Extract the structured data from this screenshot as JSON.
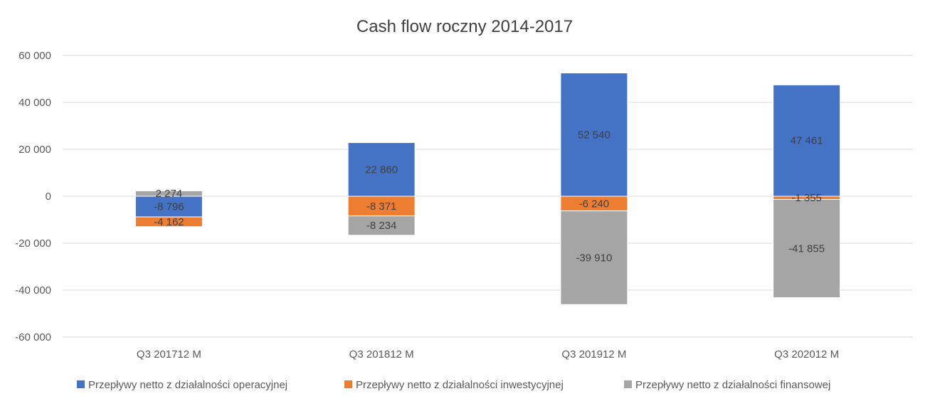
{
  "chart_data": {
    "type": "bar",
    "stacked": true,
    "title": "Cash flow roczny 2014-2017",
    "xlabel": "",
    "ylabel": "",
    "categories": [
      "Q3 201712 M",
      "Q3 201812 M",
      "Q3 201912 M",
      "Q3 202012 M"
    ],
    "ylim": [
      -60000,
      60000
    ],
    "ytick_values": [
      60000,
      40000,
      20000,
      0,
      -20000,
      -40000,
      -60000
    ],
    "ytick_labels": [
      "60 000",
      "40 000",
      "20 000",
      "0",
      "-20 000",
      "-40 000",
      "-60 000"
    ],
    "grid": true,
    "legend_position": "bottom",
    "series": [
      {
        "name": "Przepływy netto z działalności operacyjnej",
        "color": "#4472c4",
        "values": [
          -8796,
          22860,
          52540,
          47461
        ],
        "labels": [
          "-8 796",
          "22 860",
          "52 540",
          "47 461"
        ]
      },
      {
        "name": "Przepływy netto z działalności inwestycyjnej",
        "color": "#ed7d31",
        "values": [
          -4162,
          -8371,
          -6240,
          -1355
        ],
        "labels": [
          "-4 162",
          "-8 371",
          "-6 240",
          "-1 355"
        ]
      },
      {
        "name": "Przepływy netto z działalności finansowej",
        "color": "#a5a5a5",
        "values": [
          2274,
          -8234,
          -39910,
          -41855
        ],
        "labels": [
          "2 274",
          "-8 234",
          "-39 910",
          "-41 855"
        ]
      }
    ]
  }
}
